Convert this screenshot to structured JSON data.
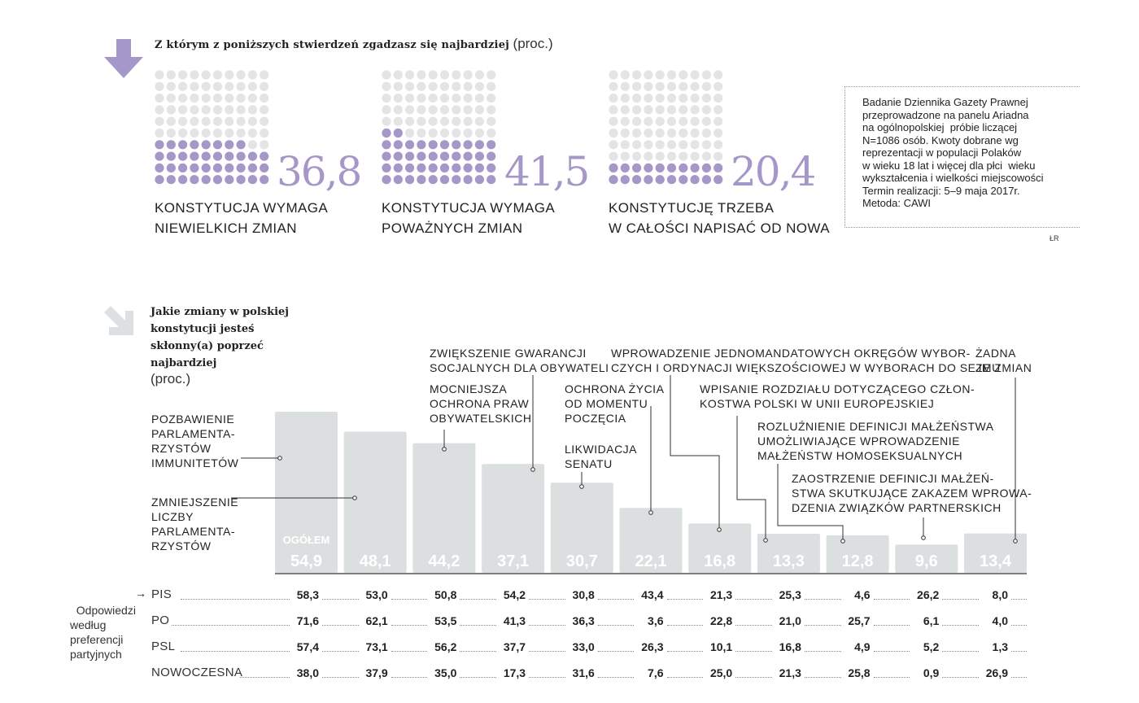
{
  "colors": {
    "accent": "#a597c7",
    "dot_light": "#e4e4e4",
    "bar": "#dcdfe0",
    "bar_label": "#ffffff",
    "arrow2": "#dde0e2"
  },
  "survey": {
    "question": "Z którym z poniższych stwierdzeń zgadzasz się najbardziej",
    "unit": "(proc.)",
    "options": [
      {
        "value": "36,8",
        "label_line1": "KONSTYTUCJA WYMAGA",
        "label_line2": "NIEWIELKICH ZMIAN",
        "filled_rows": 3,
        "partial_dots": 8
      },
      {
        "value": "41,5",
        "label_line1": "KONSTYTUCJA WYMAGA",
        "label_line2": "POWAŻNYCH ZMIAN",
        "filled_rows": 4,
        "partial_dots": 2
      },
      {
        "value": "20,4",
        "label_line1": "KONSTYTUCJĘ TRZEBA",
        "label_line2": "W CAŁOŚCI NAPISAĆ OD NOWA",
        "filled_rows": 2,
        "partial_dots": 0
      }
    ]
  },
  "note": "Badanie Dziennika Gazety Prawnej\nprzeprowadzone na panelu Ariadna\nna ogólnopolskiej  próbie liczącej\nN=1086 osób. Kwoty dobrane wg\nreprezentacji w populacji Polaków\nw wieku 18 lat i więcej dla płci  wieku\nwykształcenia i wielkości miejscowości\nTermin realizacji: 5–9 maja 2017r.\nMetoda: CAWI",
  "credit": "ŁR",
  "chart_data": {
    "type": "bar",
    "title": "Jakie zmiany w polskiej konstytucji jesteś skłonny(a) poprzeć najbardziej",
    "unit": "(proc.)",
    "overall_label": "OGÓŁEM",
    "categories": [
      "POZBAWIENIE PARLAMENTA-RZYSTÓW IMMUNITETÓW",
      "ZMNIEJSZENIE LICZBY PARLAMENTA-RZYSTÓW",
      "MOCNIEJSZA OCHRONA PRAW OBYWATELSKICH",
      "ZWIĘKSZENIE GWARANCJI SOCJALNYCH DLA OBYWATELI",
      "LIKWIDACJA SENATU",
      "OCHRONA ŻYCIA OD MOMENTU POCZĘCIA",
      "WPROWADZENIE JEDNOMANDATOWYCH OKRĘGÓW WYBOR-CZYCH I ORDYNACJI WIĘKSZOŚCIOWEJ W WYBORACH DO SEJMU",
      "WPISANIE ROZDZIAŁU DOTYCZĄCEGO CZŁON-KOSTWA POLSKI W UNII EUROPEJSKIEJ",
      "ROZLUŹNIENIE DEFINICJI MAŁŻEŃSTWA UMOŻLIWIAJĄCE WPROWADZENIE MAŁŻEŃSTW HOMOSEKSUALNYCH",
      "ZAOSTRZENIE DEFINICJI MAŁŻEŃ-STWA SKUTKUJĄCE ZAKAZEM WPROWA-DZENIA ZWIĄZKÓW PARTNERSKICH",
      "ŻADNA ZE ZMIAN"
    ],
    "values": [
      54.9,
      48.1,
      44.2,
      37.1,
      30.7,
      22.1,
      16.8,
      13.3,
      12.8,
      9.6,
      13.4
    ],
    "value_labels": [
      "54,9",
      "48,1",
      "44,2",
      "37,1",
      "30,7",
      "22,1",
      "16,8",
      "13,3",
      "12,8",
      "9,6",
      "13,4"
    ],
    "ylim": [
      0,
      60
    ],
    "by_party": {
      "label": "Odpowiedzi\nwedług\npreferencji\npartyjnych",
      "arrow": "→",
      "rows": [
        {
          "party": "PIS",
          "values": [
            "58,3",
            "53,0",
            "50,8",
            "54,2",
            "30,8",
            "43,4",
            "21,3",
            "25,3",
            "4,6",
            "26,2",
            "8,0"
          ]
        },
        {
          "party": "PO",
          "values": [
            "71,6",
            "62,1",
            "53,5",
            "41,3",
            "36,3",
            "3,6",
            "22,8",
            "21,0",
            "25,7",
            "6,1",
            "4,0"
          ]
        },
        {
          "party": "PSL",
          "values": [
            "57,4",
            "73,1",
            "56,2",
            "37,7",
            "33,0",
            "26,3",
            "10,1",
            "16,8",
            "4,9",
            "5,2",
            "1,3"
          ]
        },
        {
          "party": "NOWOCZESNA",
          "values": [
            "38,0",
            "37,9",
            "35,0",
            "17,3",
            "31,6",
            "7,6",
            "25,0",
            "21,3",
            "25,8",
            "0,9",
            "26,9"
          ]
        }
      ]
    }
  },
  "annotations": [
    "POZBAWIENIE\nPARLAMENTA-\nRZYSTÓW\nIMMUNITETÓW",
    "ZMNIEJSZENIE\nLICZBY\nPARLAMENTA-\nRZYSTÓW",
    "MOCNIEJSZA\nOCHRONA PRAW\nOBYWATELSKICH",
    "ZWIĘKSZENIE GWARANCJI\nSOCJALNYCH DLA OBYWATELI",
    "LIKWIDACJA\nSENATU",
    "OCHRONA ŻYCIA\nOD MOMENTU\nPOCZĘCIA",
    "WPROWADZENIE JEDNOMANDATOWYCH OKRĘGÓW WYBOR-\nCZYCH I ORDYNACJI WIĘKSZOŚCIOWEJ W WYBORACH DO SEJMU",
    "WPISANIE ROZDZIAŁU DOTYCZĄCEGO CZŁON-\nKOSTWA POLSKI W UNII EUROPEJSKIEJ",
    "ROZLUŹNIENIE DEFINICJI MAŁŻEŃSTWA\nUMOŻLIWIAJĄCE WPROWADZENIE\nMAŁŻEŃSTW HOMOSEKSUALNYCH",
    "ZAOSTRZENIE DEFINICJI MAŁŻEŃ-\nSTWA SKUTKUJĄCE ZAKAZEM WPROWA-\nDZENIA ZWIĄZKÓW PARTNERSKICH",
    "ŻADNA\nZE ZMIAN"
  ]
}
